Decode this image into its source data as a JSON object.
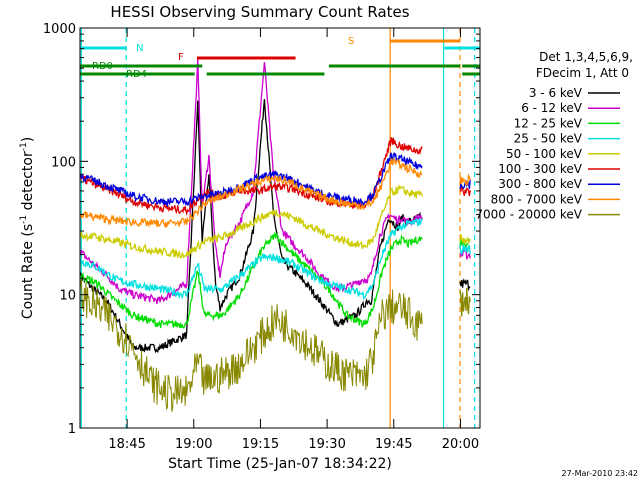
{
  "chart_data": {
    "type": "line",
    "title": "HESSI Observing Summary Count Rates",
    "xlabel": "Start Time (25-Jan-07 18:34:22)",
    "ylabel": "Count Rate (s",
    "ylabel_sup": "-1",
    "ylabel_tail": " detector",
    "ylabel_sup2": "-1",
    "ylabel_close": ")",
    "x_unit": "minutes after 18:34:22",
    "xlim": [
      0,
      90
    ],
    "ylim": [
      1,
      1000
    ],
    "yscale": "log",
    "x_ticks": [
      {
        "label": "18:45",
        "x": 10.6
      },
      {
        "label": "19:00",
        "x": 25.6
      },
      {
        "label": "19:15",
        "x": 40.6
      },
      {
        "label": "19:30",
        "x": 55.6
      },
      {
        "label": "19:45",
        "x": 70.6
      },
      {
        "label": "20:00",
        "x": 85.6
      }
    ],
    "y_ticks": [
      {
        "label": "1",
        "y": 1
      },
      {
        "label": "10",
        "y": 10
      },
      {
        "label": "100",
        "y": 100
      },
      {
        "label": "1000",
        "y": 1000
      }
    ],
    "legend_header": [
      "Det 1,3,4,5,6,9,",
      "FDecim 1, Att 0"
    ],
    "legend_position": "right",
    "series": [
      {
        "name": "3 - 6 keV",
        "color": "#000000",
        "x": [
          0,
          3,
          6,
          9,
          12,
          18,
          24,
          26.5,
          27.5,
          29,
          30.5,
          31.5,
          33,
          36,
          39,
          41.5,
          43.5,
          45.5,
          48,
          51,
          54,
          58,
          62,
          63.5,
          64.5,
          65.5,
          67.5,
          69.5,
          71.5,
          72.5,
          73.5,
          75,
          76,
          77
        ],
        "y": [
          14,
          11,
          9,
          6,
          4,
          4,
          5,
          280,
          25,
          80,
          12,
          8,
          10,
          14,
          30,
          300,
          40,
          18,
          15,
          12,
          9,
          6,
          7,
          8,
          9,
          9,
          22,
          38,
          32,
          38,
          35,
          36,
          38,
          38
        ]
      },
      {
        "name": "6 - 12 keV",
        "color": "#cc00cc",
        "x": [
          0,
          3,
          6,
          9,
          12,
          18,
          24,
          26.5,
          27.5,
          29,
          30.5,
          31.5,
          33,
          36,
          39,
          41.5,
          43.5,
          45.5,
          48,
          51,
          54,
          58,
          62,
          63.5,
          64.5,
          65.5,
          67.5,
          69.5,
          71.5,
          72.5,
          73.5,
          75,
          76,
          77
        ],
        "y": [
          21,
          17,
          14,
          11,
          10,
          9,
          12,
          550,
          45,
          110,
          22,
          14,
          25,
          35,
          60,
          550,
          80,
          30,
          24,
          19,
          14,
          11,
          12,
          13,
          13,
          14,
          28,
          40,
          36,
          38,
          35,
          36,
          38,
          38
        ]
      },
      {
        "name": "12 - 25 keV",
        "color": "#00dd00",
        "x": [
          0,
          4,
          8,
          12,
          18,
          24,
          26.5,
          28,
          32,
          36,
          41,
          44,
          48,
          52,
          56,
          60,
          64,
          66,
          68,
          70,
          72,
          74,
          76,
          77
        ],
        "y": [
          14,
          12,
          9,
          7,
          6,
          6,
          15,
          7,
          7,
          10,
          22,
          28,
          20,
          15,
          11,
          7,
          6,
          8,
          15,
          22,
          26,
          24,
          26,
          26
        ]
      },
      {
        "name": "25 - 50 keV",
        "color": "#00e0e0",
        "x": [
          0,
          4,
          8,
          12,
          18,
          24,
          26.5,
          28,
          32,
          36,
          41,
          44,
          48,
          52,
          56,
          60,
          64,
          66,
          68,
          70,
          72,
          74,
          76,
          77
        ],
        "y": [
          18,
          16,
          13,
          12,
          11,
          10,
          17,
          11,
          11,
          14,
          19,
          19,
          17,
          14,
          12,
          11,
          10,
          12,
          20,
          28,
          32,
          34,
          35,
          36
        ]
      },
      {
        "name": "50 - 100 keV",
        "color": "#cccc00",
        "x": [
          0,
          4,
          8,
          12,
          18,
          24,
          28,
          32,
          36,
          40,
          44,
          48,
          52,
          56,
          60,
          64,
          66,
          68,
          70,
          72,
          74,
          76,
          77
        ],
        "y": [
          28,
          27,
          25,
          23,
          21,
          20,
          25,
          27,
          31,
          37,
          42,
          38,
          32,
          28,
          25,
          23,
          26,
          40,
          58,
          62,
          58,
          56,
          55
        ]
      },
      {
        "name": "100 - 300 keV",
        "color": "#dd0000",
        "x": [
          0,
          4,
          8,
          12,
          18,
          24,
          28,
          32,
          36,
          40,
          44,
          48,
          52,
          56,
          60,
          64,
          66,
          68,
          70,
          72,
          74,
          76,
          77
        ],
        "y": [
          75,
          66,
          58,
          50,
          45,
          43,
          58,
          55,
          60,
          60,
          65,
          62,
          55,
          50,
          48,
          46,
          55,
          90,
          145,
          130,
          125,
          120,
          125
        ]
      },
      {
        "name": "300 - 800 keV",
        "color": "#0000dd",
        "x": [
          0,
          4,
          8,
          12,
          18,
          24,
          28,
          32,
          36,
          40,
          44,
          48,
          52,
          56,
          60,
          64,
          66,
          68,
          70,
          72,
          74,
          76,
          77
        ],
        "y": [
          78,
          70,
          62,
          55,
          50,
          50,
          55,
          58,
          65,
          75,
          80,
          72,
          62,
          55,
          52,
          50,
          57,
          80,
          110,
          105,
          98,
          92,
          92
        ]
      },
      {
        "name": "800 - 7000 keV",
        "color": "#ff8800",
        "x": [
          0,
          4,
          8,
          12,
          18,
          24,
          28,
          32,
          36,
          40,
          44,
          48,
          52,
          56,
          60,
          64,
          66,
          68,
          70,
          72,
          74,
          76,
          77
        ],
        "y": [
          40,
          38,
          36,
          35,
          34,
          35,
          48,
          55,
          62,
          70,
          75,
          68,
          58,
          52,
          48,
          46,
          50,
          68,
          100,
          95,
          88,
          82,
          80
        ]
      },
      {
        "name": "7000 - 20000 keV",
        "color": "#888800",
        "x": [
          0,
          4,
          8,
          12,
          16,
          20,
          24,
          26.5,
          28,
          32,
          36,
          40,
          44,
          48,
          52,
          56,
          60,
          64,
          66,
          68,
          70,
          72,
          74,
          76,
          77
        ],
        "y": [
          10,
          8,
          6,
          4,
          2.2,
          1.8,
          1.8,
          3,
          2.2,
          2.5,
          3,
          4.5,
          6.5,
          5.5,
          4,
          3,
          2.5,
          2.4,
          3.5,
          7,
          8,
          8,
          7,
          6,
          6
        ]
      }
    ],
    "post_gap_levels": {
      "x_start": 85.5,
      "x_end": 87.8,
      "values": [
        12,
        20,
        25,
        22,
        26,
        60,
        68,
        72,
        9
      ]
    },
    "flag_bars": [
      {
        "label": "N",
        "color": "#00e0e0",
        "segments": [
          [
            0,
            10.4
          ],
          [
            82,
            90
          ]
        ]
      },
      {
        "label": "F",
        "color": "#dd0000",
        "segments": [
          [
            26.3,
            48.5
          ]
        ]
      },
      {
        "label": "S",
        "color": "#ff8800",
        "segments": [
          [
            69.8,
            85.5
          ]
        ]
      },
      {
        "label": "RD0",
        "color": "#008800",
        "segments": [
          [
            0,
            27.5
          ],
          [
            56,
            85.5
          ],
          [
            86,
            90
          ]
        ]
      },
      {
        "label": "RD4",
        "color": "#008800",
        "segments": [
          [
            0,
            25.8
          ],
          [
            28.5,
            55
          ],
          [
            86,
            90
          ]
        ]
      }
    ],
    "vlines": [
      {
        "x": 0.3,
        "color": "#00e0e0",
        "style": "solid"
      },
      {
        "x": 10.4,
        "color": "#00e0e0",
        "style": "dashed"
      },
      {
        "x": 69.8,
        "color": "#ff8800",
        "style": "solid"
      },
      {
        "x": 81.8,
        "color": "#00e0e0",
        "style": "solid"
      },
      {
        "x": 85.5,
        "color": "#ff8800",
        "style": "dashed"
      },
      {
        "x": 88.8,
        "color": "#00e0e0",
        "style": "dashed"
      }
    ],
    "timestamp": "27-Mar-2010 23:42"
  }
}
